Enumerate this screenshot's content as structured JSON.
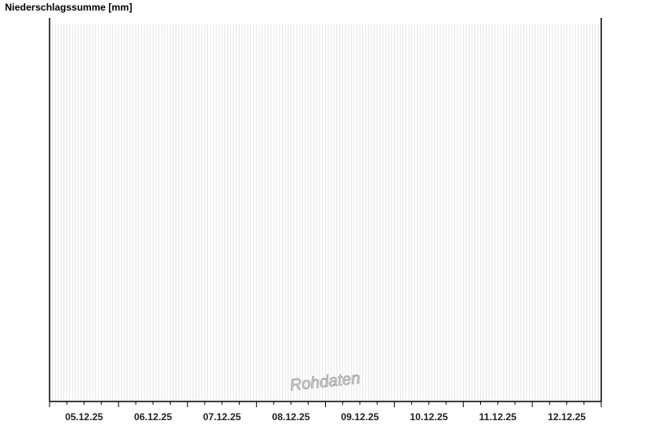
{
  "chart_data": {
    "type": "bar",
    "title": "Niederschlagssumme [mm]",
    "xlabel": "",
    "ylabel": "",
    "categories": [
      "05.12.25",
      "06.12.25",
      "07.12.25",
      "08.12.25",
      "09.12.25",
      "10.12.25",
      "11.12.25",
      "12.12.25"
    ],
    "series": [],
    "grid": "hourly vertical lines",
    "watermark": "Rohdaten",
    "colors": {
      "grid": "#e6e6e6",
      "axis": "#000000",
      "watermark": "#d8d8d8"
    }
  }
}
